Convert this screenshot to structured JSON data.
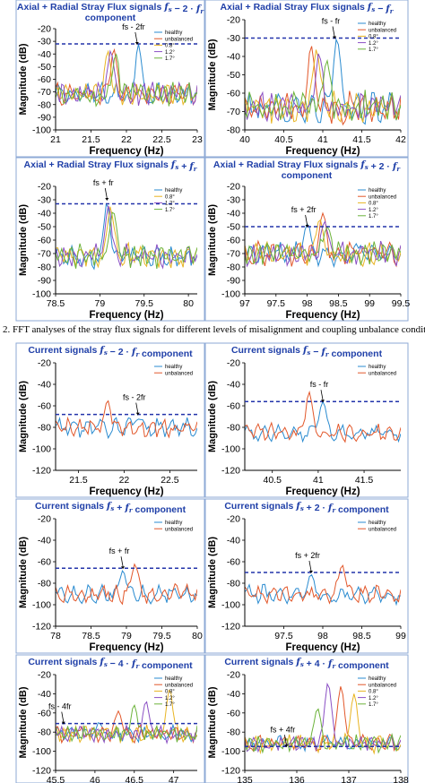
{
  "colors": {
    "title": "#1f3fa8",
    "threshold": "#2233aa",
    "axis": "#000000",
    "grid": "#d9d9d9",
    "panel_border": "#8eaad6",
    "healthy": "#2a8bd0",
    "unbalanced": "#e2572a",
    "s08": "#e8b422",
    "s12": "#8a4fc4",
    "s17": "#6cb33a"
  },
  "caption": "2.  FFT analyses of the stray flux signals for different levels of misalignment and coupling unbalance conditions.",
  "chart_data": [
    {
      "type": "line",
      "title": "Axial + Radial Stray Flux signals f_s − 2 · f_r component",
      "xlabel": "Frequency (Hz)",
      "ylabel": "Magnitude (dB)",
      "xlim": [
        21,
        23
      ],
      "ylim": [
        -100,
        -20
      ],
      "xticks": [
        "21",
        "21.5",
        "22",
        "22.5",
        "23"
      ],
      "yticks": [
        "-20",
        "-30",
        "-40",
        "-50",
        "-60",
        "-70",
        "-80",
        "-90",
        "-100"
      ],
      "threshold": -32,
      "annotation": "fs - 2fr",
      "annotation_at": [
        22.15,
        -32
      ],
      "legend": [
        "healthy",
        "unbalanced",
        "0.8°",
        "1.2°",
        "1.7°"
      ],
      "peaks": [
        {
          "series": "healthy",
          "x": 22.17,
          "y": -32
        },
        {
          "series": "unbalanced",
          "x": 21.82,
          "y": -36
        },
        {
          "series": "0.8°",
          "x": 21.74,
          "y": -38
        },
        {
          "series": "1.2°",
          "x": 21.78,
          "y": -37
        },
        {
          "series": "1.7°",
          "x": 21.85,
          "y": -40
        }
      ],
      "noise_floor": -72
    },
    {
      "type": "line",
      "title": "Axial + Radial Stray Flux signals f_s − f_r",
      "xlabel": "Frequency (Hz)",
      "ylabel": "Magnitude (dB)",
      "xlim": [
        40,
        42
      ],
      "ylim": [
        -80,
        -20
      ],
      "xticks": [
        "40",
        "40.5",
        "41",
        "41.5",
        "42"
      ],
      "yticks": [
        "-20",
        "-30",
        "-40",
        "-50",
        "-60",
        "-70",
        "-80"
      ],
      "threshold": -30,
      "annotation": "fs - fr",
      "annotation_at": [
        41.15,
        -30
      ],
      "legend": [
        "healthy",
        "unbalanced",
        "0.8°",
        "1.2°",
        "1.7°"
      ],
      "peaks": [
        {
          "series": "healthy",
          "x": 41.18,
          "y": -30
        },
        {
          "series": "unbalanced",
          "x": 40.85,
          "y": -34
        },
        {
          "series": "0.8°",
          "x": 40.92,
          "y": -36
        },
        {
          "series": "1.2°",
          "x": 40.95,
          "y": -38
        },
        {
          "series": "1.7°",
          "x": 41.05,
          "y": -42
        }
      ],
      "noise_floor": -68
    },
    {
      "type": "line",
      "title": "Axial + Radial Stray Flux signals f_s + f_r",
      "xlabel": "Frequency (Hz)",
      "ylabel": "Magnitude (dB)",
      "xlim": [
        78.5,
        80.1
      ],
      "ylim": [
        -100,
        -20
      ],
      "xticks": [
        "78.5",
        "79",
        "79.5",
        "80"
      ],
      "yticks": [
        "-20",
        "-30",
        "-40",
        "-50",
        "-60",
        "-70",
        "-80",
        "-90",
        "-100"
      ],
      "threshold": -33,
      "annotation": "fs + fr",
      "annotation_at": [
        79.08,
        -30
      ],
      "legend": [
        "healthy",
        "0.8°",
        "1.2°",
        "1.7°"
      ],
      "peaks": [
        {
          "series": "healthy",
          "x": 79.08,
          "y": -32
        },
        {
          "series": "0.8°",
          "x": 79.12,
          "y": -35
        },
        {
          "series": "1.2°",
          "x": 79.1,
          "y": -34
        },
        {
          "series": "1.7°",
          "x": 79.15,
          "y": -38
        }
      ],
      "noise_floor": -72
    },
    {
      "type": "line",
      "title": "Axial + Radial Stray Flux signals f_s + 2 · f_r component",
      "xlabel": "Frequency (Hz)",
      "ylabel": "Magnitude (dB)",
      "xlim": [
        97,
        99.5
      ],
      "ylim": [
        -100,
        -20
      ],
      "xticks": [
        "97",
        "97.5",
        "98",
        "98.5",
        "99",
        "99.5"
      ],
      "yticks": [
        "-20",
        "-30",
        "-40",
        "-50",
        "-60",
        "-70",
        "-80",
        "-90",
        "-100"
      ],
      "threshold": -50,
      "annotation": "fs + 2fr",
      "annotation_at": [
        98.0,
        -50
      ],
      "legend": [
        "healthy",
        "unbalanced",
        "0.8°",
        "1.2°",
        "1.7°"
      ],
      "peaks": [
        {
          "series": "healthy",
          "x": 98.0,
          "y": -48
        },
        {
          "series": "unbalanced",
          "x": 98.25,
          "y": -40
        },
        {
          "series": "0.8°",
          "x": 98.2,
          "y": -44
        },
        {
          "series": "1.2°",
          "x": 98.28,
          "y": -46
        },
        {
          "series": "1.7°",
          "x": 98.32,
          "y": -50
        }
      ],
      "noise_floor": -70
    },
    {
      "type": "line",
      "title": "Current signals f_s − 2 · f_r component",
      "xlabel": "Frequency (Hz)",
      "ylabel": "Magnitude (dB)",
      "xlim": [
        21.25,
        22.8
      ],
      "ylim": [
        -120,
        -20
      ],
      "xticks": [
        "21.5",
        "22",
        "22.5"
      ],
      "yticks": [
        "-20",
        "-40",
        "-60",
        "-80",
        "-100",
        "-120"
      ],
      "threshold": -68,
      "annotation": "fs - 2fr",
      "annotation_at": [
        22.15,
        -68
      ],
      "legend": [
        "healthy",
        "unbalanced"
      ],
      "peaks": [
        {
          "series": "unbalanced",
          "x": 21.82,
          "y": -55
        },
        {
          "series": "healthy",
          "x": 22.15,
          "y": -72
        }
      ],
      "noise_floor": -80
    },
    {
      "type": "line",
      "title": "Current signals f_s − f_r component",
      "xlabel": "Frequency (Hz)",
      "ylabel": "Magnitude (dB)",
      "xlim": [
        40.2,
        41.9
      ],
      "ylim": [
        -120,
        -20
      ],
      "xticks": [
        "40.5",
        "41",
        "41.5"
      ],
      "yticks": [
        "-20",
        "-40",
        "-60",
        "-80",
        "-100",
        "-120"
      ],
      "threshold": -56,
      "annotation": "fs - fr",
      "annotation_at": [
        41.05,
        -56
      ],
      "legend": [
        "healthy",
        "unbalanced"
      ],
      "peaks": [
        {
          "series": "unbalanced",
          "x": 40.9,
          "y": -47
        },
        {
          "series": "healthy",
          "x": 41.05,
          "y": -56
        }
      ],
      "noise_floor": -85
    },
    {
      "type": "line",
      "title": "Current signals f_s + f_r component",
      "xlabel": "Frequency (Hz)",
      "ylabel": "Magnitude (dB)",
      "xlim": [
        78,
        80
      ],
      "ylim": [
        -120,
        -20
      ],
      "xticks": [
        "78",
        "78.5",
        "79",
        "79.5",
        "80"
      ],
      "yticks": [
        "-20",
        "-40",
        "-60",
        "-80",
        "-100",
        "-120"
      ],
      "threshold": -66,
      "annotation": "fs + fr",
      "annotation_at": [
        78.95,
        -66
      ],
      "legend": [
        "healthy",
        "unbalanced"
      ],
      "peaks": [
        {
          "series": "healthy",
          "x": 78.95,
          "y": -68
        },
        {
          "series": "unbalanced",
          "x": 79.12,
          "y": -62
        }
      ],
      "noise_floor": -90
    },
    {
      "type": "line",
      "title": "Current signals f_s + 2 · f_r component",
      "xlabel": "Frequency (Hz)",
      "ylabel": "Magnitude (dB)",
      "xlim": [
        97,
        99
      ],
      "ylim": [
        -120,
        -20
      ],
      "xticks": [
        "97.5",
        "98",
        "98.5",
        "99"
      ],
      "yticks": [
        "-20",
        "-40",
        "-60",
        "-80",
        "-100",
        "-120"
      ],
      "threshold": -70,
      "annotation": "fs + 2fr",
      "annotation_at": [
        97.85,
        -70
      ],
      "legend": [
        "healthy",
        "unbalanced"
      ],
      "peaks": [
        {
          "series": "healthy",
          "x": 97.85,
          "y": -72
        },
        {
          "series": "unbalanced",
          "x": 98.25,
          "y": -63
        }
      ],
      "noise_floor": -90
    },
    {
      "type": "line",
      "title": "Current signals f_s − 4 · f_r component",
      "xlabel": "",
      "ylabel": "Magnitude (dB)",
      "xlim": [
        45.5,
        47.3
      ],
      "ylim": [
        -120,
        -20
      ],
      "xticks": [
        "45.5",
        "46",
        "46.5",
        "47"
      ],
      "yticks": [
        "-20",
        "-40",
        "-60",
        "-80",
        "-100",
        "-120"
      ],
      "threshold": -71,
      "annotation": "fs - 4fr",
      "annotation_at": [
        45.6,
        -71
      ],
      "legend": [
        "healthy",
        "unbalanced",
        "0.8°",
        "1.2°",
        "1.7°"
      ],
      "peaks": [
        {
          "series": "1.2°",
          "x": 46.65,
          "y": -48
        },
        {
          "series": "0.8°",
          "x": 46.95,
          "y": -35
        },
        {
          "series": "unbalanced",
          "x": 46.3,
          "y": -58
        },
        {
          "series": "1.7°",
          "x": 46.5,
          "y": -52
        },
        {
          "series": "healthy",
          "x": 46.05,
          "y": -70
        }
      ],
      "noise_floor": -82
    },
    {
      "type": "line",
      "title": "Current signals f_s + 4 · f_r component",
      "xlabel": "",
      "ylabel": "Magnitude (dB)",
      "xlim": [
        135,
        138
      ],
      "ylim": [
        -120,
        -20
      ],
      "xticks": [
        "135",
        "136",
        "137",
        "138"
      ],
      "yticks": [
        "-20",
        "-40",
        "-60",
        "-80",
        "-100",
        "-120"
      ],
      "threshold": -95,
      "annotation": "fs + 4fr",
      "annotation_at": [
        135.8,
        -95
      ],
      "legend": [
        "healthy",
        "unbalanced",
        "0.8°",
        "1.2°",
        "1.7°"
      ],
      "peaks": [
        {
          "series": "1.2°",
          "x": 136.6,
          "y": -28
        },
        {
          "series": "unbalanced",
          "x": 136.85,
          "y": -32
        },
        {
          "series": "0.8°",
          "x": 137.1,
          "y": -40
        },
        {
          "series": "1.7°",
          "x": 136.4,
          "y": -55
        },
        {
          "series": "healthy",
          "x": 135.9,
          "y": -92
        }
      ],
      "noise_floor": -92
    }
  ]
}
